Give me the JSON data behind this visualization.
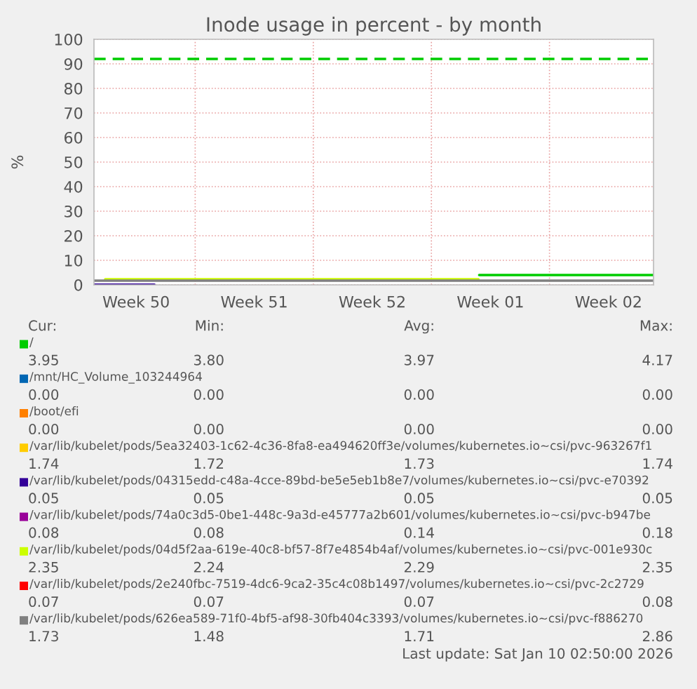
{
  "chart_data": {
    "type": "line",
    "title": "Inode usage in percent - by month",
    "ylabel": "%",
    "xlim": [
      "2025-12-09",
      "2026-01-11T04:00"
    ],
    "xticks": [
      {
        "value": "2025-12-11T12:00",
        "label": "Week 50"
      },
      {
        "value": "2025-12-15",
        "label": null
      },
      {
        "value": "2025-12-18T12:00",
        "label": "Week 51"
      },
      {
        "value": "2025-12-22",
        "label": null
      },
      {
        "value": "2025-12-25T12:00",
        "label": "Week 52"
      },
      {
        "value": "2025-12-29",
        "label": null
      },
      {
        "value": "2026-01-01T12:00",
        "label": "Week 01"
      },
      {
        "value": "2026-01-05",
        "label": null
      },
      {
        "value": "2026-01-08T12:00",
        "label": "Week 02"
      }
    ],
    "ylim": [
      0,
      100
    ],
    "legend": "bottom",
    "yticks": [
      0,
      10,
      20,
      30,
      40,
      50,
      60,
      70,
      80,
      90,
      100
    ],
    "grid": true,
    "series": [
      {
        "name": "/",
        "color": "#00cc00",
        "x": [
          "2025-12-31T20:00",
          "2026-01-11T04:00"
        ],
        "values": [
          4.0,
          4.0
        ]
      },
      {
        "name": "/mnt/HC_Volume_103244964",
        "color": "#0066b3",
        "values": [
          null
        ]
      },
      {
        "name": "/boot/efi",
        "color": "#ff8000",
        "values": [
          null
        ]
      },
      {
        "name": "/var/lib/kubelet/pods/5ea32403-1c62-4c36-8fa8-ea494620ff3e/volumes/kubernetes.io~csi/pvc-963267f1",
        "color": "#ffcc00",
        "values": [
          null
        ]
      },
      {
        "name": "/var/lib/kubelet/pods/04315edd-c48a-4cce-89bd-be5e5eb1b8e7/volumes/kubernetes.io~csi/pvc-e70392",
        "color": "#330099",
        "x": [
          "2025-12-09",
          "2025-12-12T14:00"
        ],
        "values": [
          0.05,
          0.05
        ]
      },
      {
        "name": "/var/lib/kubelet/pods/74a0c3d5-0be1-448c-9a3d-e45777a2b601/volumes/kubernetes.io~csi/pvc-b947be",
        "color": "#990099",
        "values": [
          null
        ]
      },
      {
        "name": "/var/lib/kubelet/pods/04d5f2aa-619e-40c8-bf57-8f7e4854b4af/volumes/kubernetes.io~csi/pvc-001e930c",
        "color": "#ccff00",
        "x": [
          "2025-12-09T16:00",
          "2025-12-31T19:00"
        ],
        "values": [
          2.3,
          2.3
        ]
      },
      {
        "name": "/var/lib/kubelet/pods/2e240fbc-7519-4dc6-9ca2-35c4c08b1497/volumes/kubernetes.io~csi/pvc-2c2729",
        "color": "#ff0000",
        "values": [
          null
        ]
      },
      {
        "name": "/var/lib/kubelet/pods/626ea589-71f0-4bf5-af98-30fb404c3393/volumes/kubernetes.io~csi/pvc-f886270",
        "color": "#808080",
        "x": [
          "2025-12-09",
          "2026-01-11T04:00"
        ],
        "values": [
          1.7,
          1.7
        ]
      }
    ],
    "ref_lines": [
      {
        "axis": "y",
        "value": 92,
        "color": "#00cc00",
        "line_style": "dashed"
      }
    ],
    "annotations": [
      "Cur:",
      "Min:",
      "Avg:",
      "Max:",
      "3.95",
      "3.80",
      "3.97",
      "4.17",
      "0.00",
      "0.00",
      "0.00",
      "0.00",
      "0.00",
      "0.00",
      "0.00",
      "0.00",
      "1.74",
      "1.72",
      "1.73",
      "1.74",
      "0.05",
      "0.05",
      "0.05",
      "0.05",
      "0.08",
      "0.08",
      "0.14",
      "0.18",
      "2.35",
      "2.24",
      "2.29",
      "2.35",
      "0.07",
      "0.07",
      "0.07",
      "0.08",
      "1.73",
      "1.48",
      "1.71",
      "2.86",
      "Last update: Sat Jan 10 02:50:00 2026"
    ]
  }
}
